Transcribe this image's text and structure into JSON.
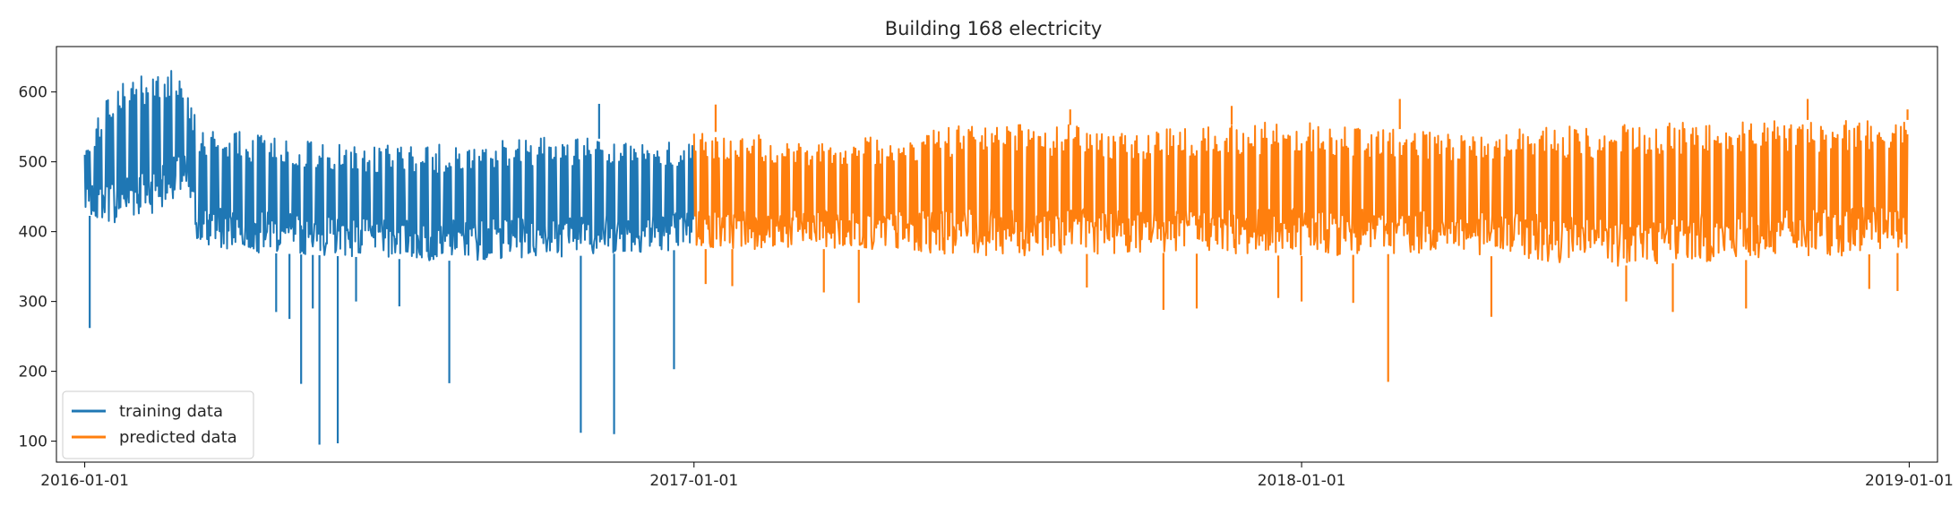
{
  "chart_data": {
    "type": "line",
    "title": "Building 168 electricity",
    "xlabel": "",
    "ylabel": "",
    "x_ticks": [
      "2016-01-01",
      "2017-01-01",
      "2018-01-01",
      "2019-01-01"
    ],
    "y_ticks": [
      100,
      200,
      300,
      400,
      500,
      600
    ],
    "xlim": [
      "2015-12-15",
      "2019-01-18"
    ],
    "ylim": [
      70,
      665
    ],
    "legend": {
      "placement": "lower-left",
      "entries": [
        "training data",
        "predicted data"
      ]
    },
    "grid": false,
    "series": [
      {
        "name": "training data",
        "color": "#1f77b4",
        "x_range": [
          "2016-01-01",
          "2017-01-01"
        ],
        "band_points": [
          {
            "date": "2016-01-01",
            "low": 425,
            "high": 525
          },
          {
            "date": "2016-01-20",
            "low": 410,
            "high": 620
          },
          {
            "date": "2016-02-15",
            "low": 430,
            "high": 635
          },
          {
            "date": "2016-03-01",
            "low": 450,
            "high": 625
          },
          {
            "date": "2016-03-10",
            "low": 375,
            "high": 550
          },
          {
            "date": "2016-04-15",
            "low": 370,
            "high": 540
          },
          {
            "date": "2016-06-01",
            "low": 365,
            "high": 525
          },
          {
            "date": "2016-08-01",
            "low": 358,
            "high": 525
          },
          {
            "date": "2016-10-01",
            "low": 362,
            "high": 535
          },
          {
            "date": "2016-12-31",
            "low": 375,
            "high": 530
          }
        ],
        "outliers": [
          {
            "date": "2016-01-04",
            "value": 262
          },
          {
            "date": "2016-04-25",
            "value": 285
          },
          {
            "date": "2016-05-03",
            "value": 275
          },
          {
            "date": "2016-05-10",
            "value": 182
          },
          {
            "date": "2016-05-17",
            "value": 290
          },
          {
            "date": "2016-05-21",
            "value": 95
          },
          {
            "date": "2016-06-01",
            "value": 97
          },
          {
            "date": "2016-06-12",
            "value": 300
          },
          {
            "date": "2016-07-08",
            "value": 293
          },
          {
            "date": "2016-08-07",
            "value": 183
          },
          {
            "date": "2016-10-25",
            "value": 112
          },
          {
            "date": "2016-11-05",
            "value": 583
          },
          {
            "date": "2016-11-14",
            "value": 110
          },
          {
            "date": "2016-12-20",
            "value": 203
          }
        ]
      },
      {
        "name": "predicted data",
        "color": "#ff7f0e",
        "x_range": [
          "2017-01-01",
          "2018-12-31"
        ],
        "band_points": [
          {
            "date": "2017-01-01",
            "low": 375,
            "high": 545
          },
          {
            "date": "2017-04-01",
            "low": 375,
            "high": 530
          },
          {
            "date": "2017-07-01",
            "low": 365,
            "high": 560
          },
          {
            "date": "2017-10-01",
            "low": 370,
            "high": 545
          },
          {
            "date": "2018-01-01",
            "low": 365,
            "high": 560
          },
          {
            "date": "2018-04-01",
            "low": 370,
            "high": 540
          },
          {
            "date": "2018-07-01",
            "low": 350,
            "high": 555
          },
          {
            "date": "2018-10-01",
            "low": 360,
            "high": 560
          },
          {
            "date": "2018-12-31",
            "low": 370,
            "high": 560
          }
        ],
        "outliers": [
          {
            "date": "2017-01-08",
            "value": 325
          },
          {
            "date": "2017-01-24",
            "value": 322
          },
          {
            "date": "2017-01-14",
            "value": 582
          },
          {
            "date": "2017-03-20",
            "value": 313
          },
          {
            "date": "2017-04-10",
            "value": 298
          },
          {
            "date": "2017-08-15",
            "value": 575
          },
          {
            "date": "2017-08-25",
            "value": 320
          },
          {
            "date": "2017-10-10",
            "value": 288
          },
          {
            "date": "2017-10-30",
            "value": 290
          },
          {
            "date": "2017-11-20",
            "value": 580
          },
          {
            "date": "2017-12-18",
            "value": 305
          },
          {
            "date": "2018-01-01",
            "value": 300
          },
          {
            "date": "2018-02-01",
            "value": 298
          },
          {
            "date": "2018-03-01",
            "value": 590
          },
          {
            "date": "2018-02-22",
            "value": 185
          },
          {
            "date": "2018-04-25",
            "value": 278
          },
          {
            "date": "2018-07-15",
            "value": 300
          },
          {
            "date": "2018-08-12",
            "value": 285
          },
          {
            "date": "2018-09-25",
            "value": 290
          },
          {
            "date": "2018-11-01",
            "value": 590
          },
          {
            "date": "2018-12-08",
            "value": 318
          },
          {
            "date": "2018-12-25",
            "value": 315
          },
          {
            "date": "2018-12-31",
            "value": 575
          }
        ]
      }
    ]
  }
}
